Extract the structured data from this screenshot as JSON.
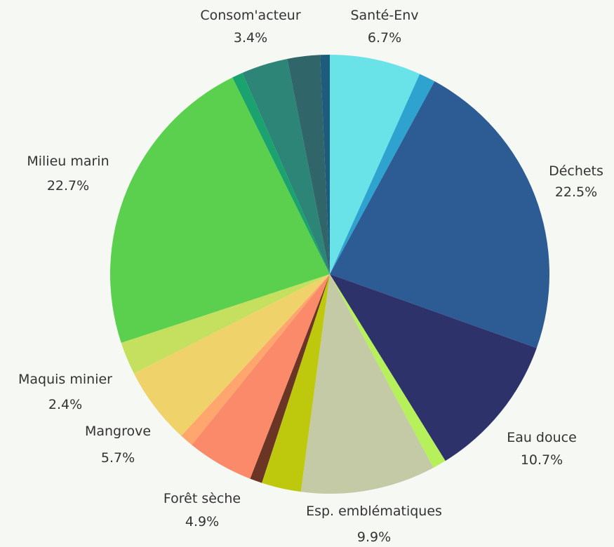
{
  "chart_data": {
    "type": "pie",
    "start": "top, clockwise",
    "slices": [
      {
        "label": "Santé-Env",
        "display": "6.7%",
        "value": 6.7,
        "color": "#69e3e8"
      },
      {
        "label": "",
        "display": "",
        "value": 1.2,
        "color": "#2ea3d0"
      },
      {
        "label": "Déchets",
        "display": "22.5%",
        "value": 22.5,
        "color": "#2d5b94"
      },
      {
        "label": "Eau douce",
        "display": "10.7%",
        "value": 10.7,
        "color": "#2e326b"
      },
      {
        "label": "",
        "display": "",
        "value": 1.0,
        "color": "#b6f05a"
      },
      {
        "label": "Esp. emblématiques",
        "display": "9.9%",
        "value": 9.9,
        "color": "#c4c9a6"
      },
      {
        "label": "",
        "display": "",
        "value": 2.9,
        "color": "#bec90d"
      },
      {
        "label": "",
        "display": "",
        "value": 0.9,
        "color": "#6b3526"
      },
      {
        "label": "Forêt sèche",
        "display": "4.9%",
        "value": 4.9,
        "color": "#fa8a69"
      },
      {
        "label": "",
        "display": "",
        "value": 1.0,
        "color": "#ffa66e"
      },
      {
        "label": "Mangrove",
        "display": "5.7%",
        "value": 5.7,
        "color": "#f0d26a"
      },
      {
        "label": "Maquis minier",
        "display": "2.4%",
        "value": 2.4,
        "color": "#c5e05e"
      },
      {
        "label": "Milieu marin",
        "display": "22.7%",
        "value": 22.7,
        "color": "#5bd04e"
      },
      {
        "label": "",
        "display": "",
        "value": 0.8,
        "color": "#1aa36e"
      },
      {
        "label": "Consom'acteur",
        "display": "3.4%",
        "value": 3.4,
        "color": "#2d8577"
      },
      {
        "label": "",
        "display": "",
        "value": 2.4,
        "color": "#30666a"
      },
      {
        "label": "",
        "display": "",
        "value": 0.7,
        "color": "#1d5c7c"
      }
    ]
  }
}
